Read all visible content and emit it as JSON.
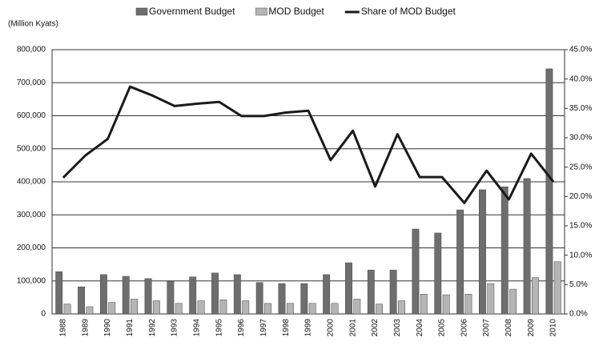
{
  "chart_data": {
    "type": "bar_line",
    "y_label": "(Million Kyats)",
    "categories": [
      "1988",
      "1989",
      "1990",
      "1991",
      "1992",
      "1993",
      "1994",
      "1995",
      "1996",
      "1997",
      "1998",
      "1999",
      "2000",
      "2001",
      "2002",
      "2003",
      "2004",
      "2005",
      "2006",
      "2007",
      "2008",
      "2009",
      "2010"
    ],
    "series": [
      {
        "name": "Government Budget",
        "color": "#6e6e6e",
        "type": "bar",
        "values": [
          128000,
          82000,
          119000,
          114000,
          107000,
          99000,
          112000,
          124000,
          119000,
          95000,
          92000,
          92000,
          119000,
          155000,
          133000,
          133000,
          257000,
          245000,
          315000,
          376000,
          385000,
          410000,
          742000
        ]
      },
      {
        "name": "MOD Budget",
        "color": "#b5b5b5",
        "type": "bar",
        "values": [
          30000,
          22000,
          35000,
          45000,
          40000,
          32000,
          40000,
          43000,
          40000,
          32000,
          32000,
          32000,
          32000,
          45000,
          30000,
          40000,
          60000,
          58000,
          60000,
          92000,
          75000,
          110000,
          158000
        ]
      },
      {
        "name": "Share of MOD Budget",
        "color": "#1a1a1a",
        "type": "line",
        "axis": "y2",
        "values": [
          23.2,
          27,
          29.8,
          38.7,
          37.2,
          35.4,
          35.8,
          36.1,
          33.7,
          33.7,
          34.3,
          34.6,
          26.2,
          31.2,
          21.7,
          30.6,
          23.3,
          23.3,
          18.9,
          24.4,
          19.5,
          27.3,
          22.5
        ]
      }
    ],
    "ylim": [
      0,
      800000
    ],
    "yticks": [
      0,
      {
        "value": 100000,
        "label": "100,000"
      },
      {
        "value": 200000,
        "label": "200,000"
      },
      {
        "value": 300000,
        "label": "300,000"
      },
      {
        "value": 400000,
        "label": "400,000"
      },
      {
        "value": 500000,
        "label": "500,000"
      },
      {
        "value": 600000,
        "label": "600,000"
      },
      {
        "value": 700000,
        "label": "700,000"
      },
      {
        "value": 800000,
        "label": "800,000"
      }
    ],
    "y2lim": [
      0,
      45
    ],
    "y2ticks": [
      {
        "value": 0,
        "label": "0.0%"
      },
      {
        "value": 5,
        "label": "5.0%"
      },
      {
        "value": 10,
        "label": "10.0%"
      },
      {
        "value": 15,
        "label": "15.0%"
      },
      {
        "value": 20,
        "label": "20.0%"
      },
      {
        "value": 25,
        "label": "25.0%"
      },
      {
        "value": 30,
        "label": "30.0%"
      },
      {
        "value": 35,
        "label": "35.0%"
      },
      {
        "value": 40,
        "label": "40.0%"
      },
      {
        "value": 45,
        "label": "45.0%"
      }
    ],
    "grid": true
  }
}
